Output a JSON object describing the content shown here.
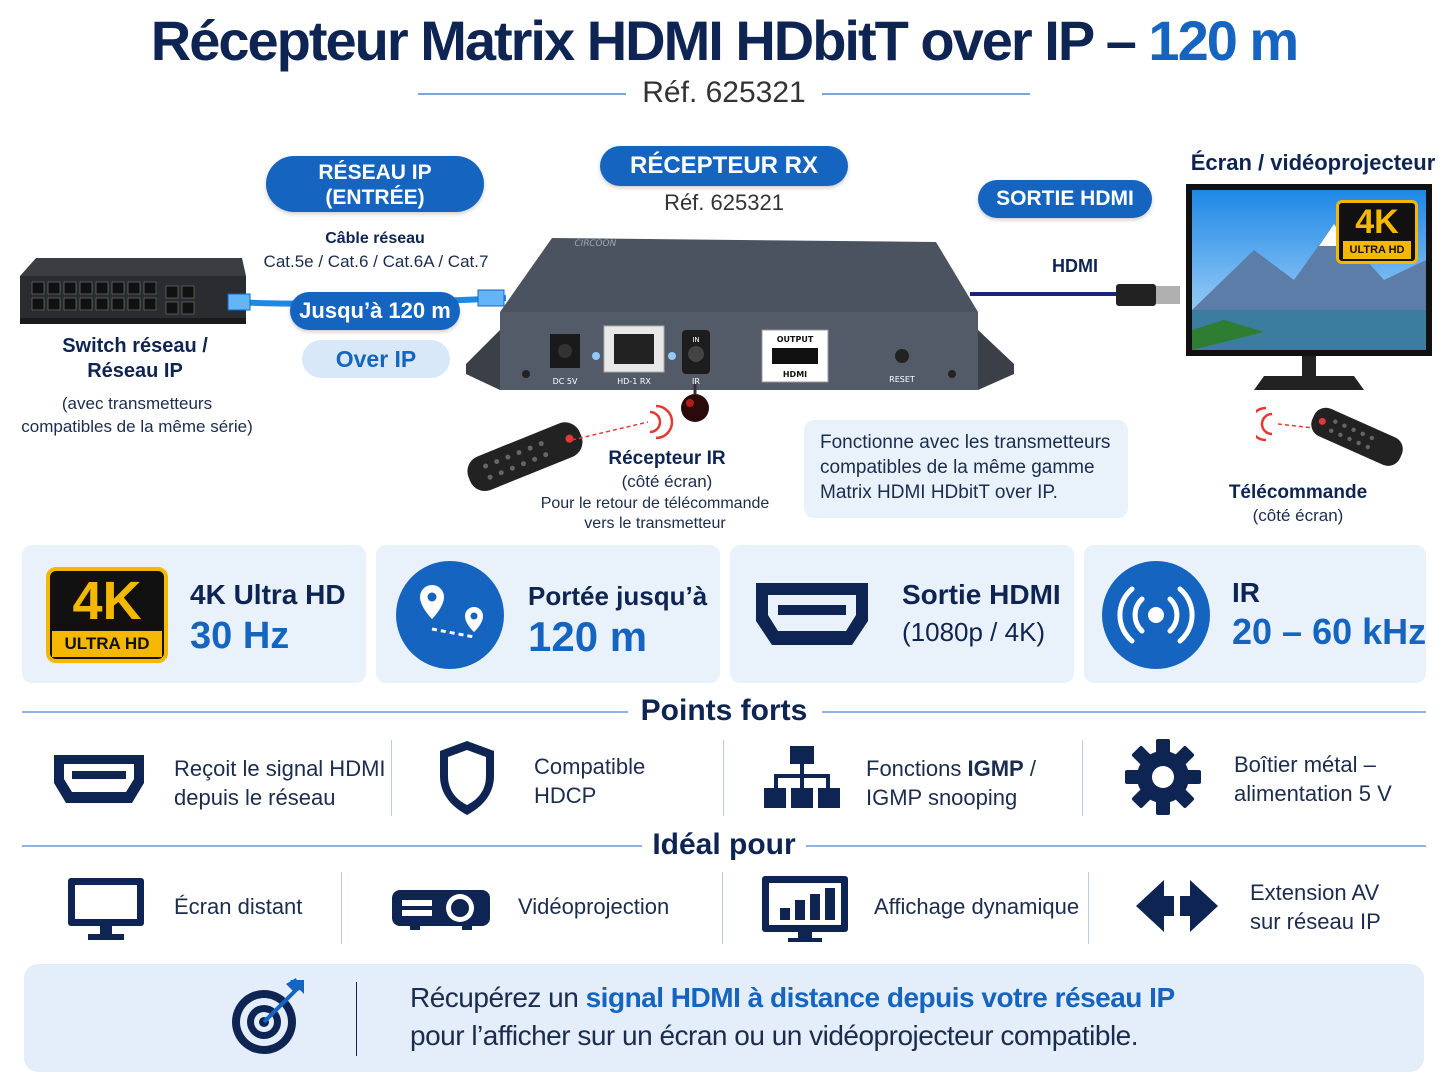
{
  "header": {
    "title_main": "Récepteur Matrix HDMI HDbitT over IP –",
    "title_accent": "120 m",
    "ref": "Réf. 625321"
  },
  "diagram": {
    "network_pill": [
      "RÉSEAU IP",
      "(ENTRÉE)"
    ],
    "receiver_pill": "RÉCEPTEUR RX",
    "receiver_ref": "Réf. 625321",
    "hdmi_out_pill": "SORTIE HDMI",
    "screen_label": "Écran / vidéoprojecteur",
    "cable_label": "Câble réseau",
    "cable_types": "Cat.5e / Cat.6 / Cat.6A / Cat.7",
    "distance_pill": "Jusqu’à 120 m",
    "over_ip_pill": "Over IP",
    "switch_label": [
      "Switch réseau /",
      "Réseau IP"
    ],
    "switch_sub": [
      "(avec transmetteurs",
      "compatibles de la même série)"
    ],
    "hdmi_cable_label": "HDMI",
    "device_brand": "CIRCOON",
    "ports": {
      "dc": "DC 5V",
      "lan": "HD-1 RX",
      "ir_in": "IN",
      "ir": "IR",
      "output": "OUTPUT",
      "hdmi": "HDMI",
      "reset": "RESET"
    },
    "ir_receiver_title": "Récepteur IR",
    "ir_receiver_sub": "(côté écran)",
    "ir_receiver_desc": [
      "Pour le retour de télécommande",
      "vers le transmetteur"
    ],
    "compat_note": [
      "Fonctionne avec les transmetteurs",
      "compatibles de la même gamme",
      "Matrix HDMI HDbitT over IP."
    ],
    "remote_title": "Télécommande",
    "remote_sub": "(côté écran)",
    "badge_4k": "4K",
    "badge_uhd": "ULTRA HD"
  },
  "features": [
    {
      "title": "4K Ultra HD",
      "value": "30 Hz",
      "icon": "4k-ultra-hd-icon"
    },
    {
      "title": "Portée jusqu’à",
      "value": "120 m",
      "icon": "location-route-icon"
    },
    {
      "title": "Sortie HDMI",
      "sub": "(1080p / 4K)",
      "icon": "hdmi-port-icon"
    },
    {
      "title": "IR",
      "value": "20 – 60 kHz",
      "icon": "ir-signal-icon"
    }
  ],
  "points_forts": {
    "heading": "Points forts",
    "items": [
      {
        "lines": [
          "Reçoit le signal HDMI",
          "depuis le réseau"
        ],
        "icon": "hdmi-port-icon"
      },
      {
        "lines": [
          "Compatible",
          "HDCP"
        ],
        "icon": "shield-icon"
      },
      {
        "line1_pre": "Fonctions ",
        "line1_bold": "IGMP",
        "line1_post": " /",
        "line2": "IGMP snooping",
        "icon": "network-tree-icon"
      },
      {
        "lines": [
          "Boîtier métal –",
          "alimentation 5 V"
        ],
        "icon": "gear-icon"
      }
    ]
  },
  "ideal_pour": {
    "heading": "Idéal pour",
    "items": [
      {
        "lines": [
          "Écran distant"
        ],
        "icon": "monitor-icon"
      },
      {
        "lines": [
          "Vidéoprojection"
        ],
        "icon": "projector-icon"
      },
      {
        "lines": [
          "Affichage dynamique"
        ],
        "icon": "signage-chart-icon"
      },
      {
        "lines": [
          "Extension AV",
          "sur réseau IP"
        ],
        "icon": "double-arrow-icon"
      }
    ]
  },
  "bottom": {
    "pre": "Récupérez un ",
    "bold": "signal HDMI à distance depuis votre réseau IP",
    "line2": "pour l’afficher sur un écran ou un vidéoprojecteur compatible.",
    "icon": "target-icon"
  },
  "colors": {
    "navy": "#0e2452",
    "accent": "#1565c0",
    "light_box": "#e9f2fb"
  }
}
